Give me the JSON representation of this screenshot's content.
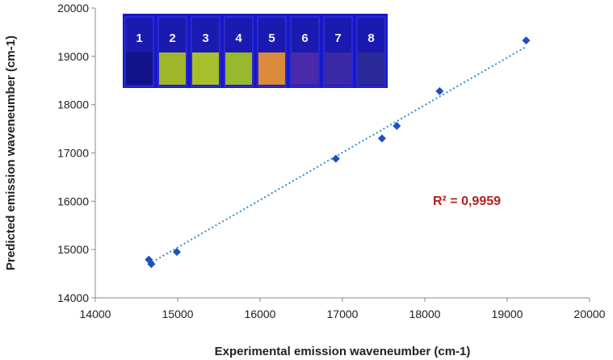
{
  "chart_data": {
    "type": "scatter",
    "title": "",
    "xlabel": "Experimental emission waveneumber (cm-1)",
    "ylabel": "Predicted emission waveneumber (cm-1)",
    "xlim": [
      14000,
      20000
    ],
    "ylim": [
      14000,
      20000
    ],
    "x_ticks": [
      "14000",
      "15000",
      "16000",
      "17000",
      "18000",
      "19000",
      "20000"
    ],
    "y_ticks": [
      "14000",
      "15000",
      "16000",
      "17000",
      "18000",
      "19000",
      "20000"
    ],
    "grid": false,
    "series": [
      {
        "x": [
          14650,
          14680,
          14990,
          16920,
          17480,
          17660,
          18180,
          19230
        ],
        "y": [
          14790,
          14700,
          14950,
          16880,
          17300,
          17560,
          18280,
          19330
        ],
        "color": "#1f4fbf",
        "marker": "diamond"
      }
    ],
    "trendline": {
      "style": "dotted",
      "color": "#2a8fd6",
      "x_range": [
        14650,
        19230
      ],
      "y_range": [
        14700,
        19200
      ]
    },
    "annotation": {
      "text": "R² = 0,9959",
      "color": "#b22222"
    },
    "inset_image": {
      "description_labels": [
        "1",
        "2",
        "3",
        "4",
        "5",
        "6",
        "7",
        "8"
      ],
      "vial_colors": [
        "#12128a",
        "#9fb52a",
        "#a7bf2c",
        "#98b82e",
        "#d98a3a",
        "#4a2aa8",
        "#3a2aa8",
        "#2a2a9a"
      ]
    }
  }
}
